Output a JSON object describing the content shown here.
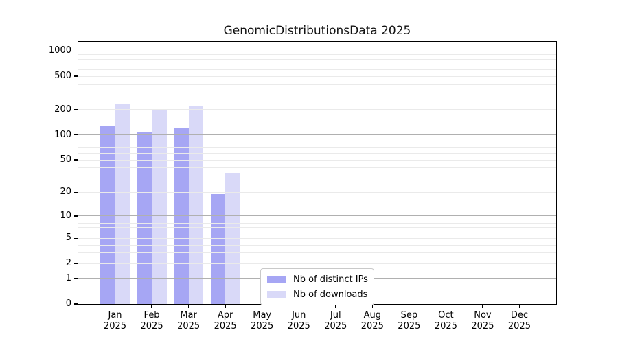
{
  "chart_data": {
    "type": "bar",
    "title": "GenomicDistributionsData 2025",
    "x": {
      "categories": [
        "Jan",
        "Feb",
        "Mar",
        "Apr",
        "May",
        "Jun",
        "Jul",
        "Aug",
        "Sep",
        "Oct",
        "Nov",
        "Dec"
      ],
      "sublabel": "2025"
    },
    "series": [
      {
        "name": "Nb of distinct IPs",
        "color": "#a6a6f4",
        "values": [
          128,
          108,
          120,
          19,
          0,
          0,
          0,
          0,
          0,
          0,
          0,
          0
        ]
      },
      {
        "name": "Nb of downloads",
        "color": "#d9d9f8",
        "values": [
          230,
          194,
          225,
          35,
          0,
          0,
          0,
          0,
          0,
          0,
          0,
          0
        ]
      }
    ],
    "y_axis": {
      "scale": "log10(1+x)",
      "ticks": [
        0,
        1,
        2,
        5,
        10,
        20,
        50,
        100,
        200,
        500,
        1000
      ],
      "max": 1280,
      "major_gridlines": [
        1,
        10,
        100,
        1000
      ],
      "minor_gridlines": [
        2,
        3,
        4,
        5,
        6,
        7,
        8,
        9,
        20,
        30,
        40,
        50,
        60,
        70,
        80,
        90,
        200,
        300,
        400,
        500,
        600,
        700,
        800,
        900
      ]
    },
    "legend_position": "lower center",
    "colors": {
      "major_grid": "#b0b0b0",
      "minor_grid": "#eaeaea",
      "axis": "#000000",
      "background": "#ffffff"
    }
  }
}
